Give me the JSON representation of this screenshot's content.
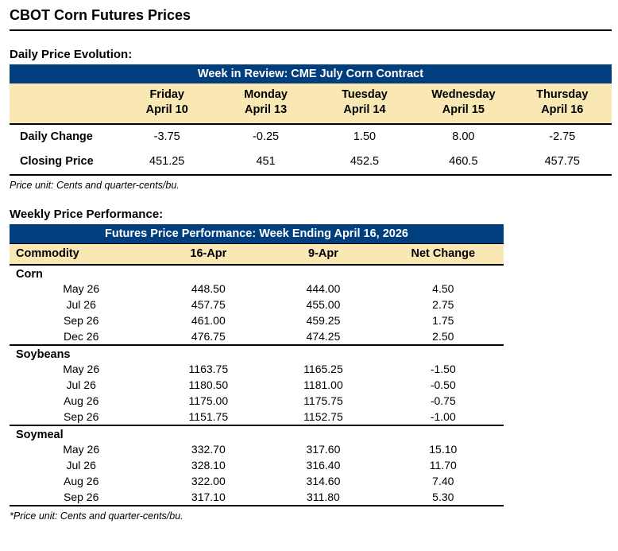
{
  "page": {
    "title": "CBOT Corn Futures Prices"
  },
  "colors": {
    "header_blue": "#003E7E",
    "header_cream": "#FAE8B4",
    "header_text": "#FFFFFF"
  },
  "daily_section": {
    "label": "Daily Price Evolution:",
    "table_title": "Week in Review: CME July Corn Contract",
    "columns": [
      {
        "day": "Friday",
        "date": "April 10"
      },
      {
        "day": "Monday",
        "date": "April 13"
      },
      {
        "day": "Tuesday",
        "date": "April 14"
      },
      {
        "day": "Wednesday",
        "date": "April 15"
      },
      {
        "day": "Thursday",
        "date": "April 16"
      }
    ],
    "rows": [
      {
        "label": "Daily Change",
        "values": [
          "-3.75",
          "-0.25",
          "1.50",
          "8.00",
          "-2.75"
        ]
      },
      {
        "label": "Closing Price",
        "values": [
          "451.25",
          "451",
          "452.5",
          "460.5",
          "457.75"
        ]
      }
    ],
    "footnote": "Price unit: Cents and quarter-cents/bu."
  },
  "weekly_section": {
    "label": "Weekly Price Performance:",
    "table_title": "Futures Price Performance: Week Ending April 16, 2026",
    "columns": [
      "Commodity",
      "16-Apr",
      "9-Apr",
      "Net Change"
    ],
    "groups": [
      {
        "name": "Corn",
        "rows": [
          {
            "contract": "May 26",
            "current": "448.50",
            "prior": "444.00",
            "change": "4.50"
          },
          {
            "contract": "Jul 26",
            "current": "457.75",
            "prior": "455.00",
            "change": "2.75"
          },
          {
            "contract": "Sep 26",
            "current": "461.00",
            "prior": "459.25",
            "change": "1.75"
          },
          {
            "contract": "Dec 26",
            "current": "476.75",
            "prior": "474.25",
            "change": "2.50"
          }
        ]
      },
      {
        "name": "Soybeans",
        "rows": [
          {
            "contract": "May 26",
            "current": "1163.75",
            "prior": "1165.25",
            "change": "-1.50"
          },
          {
            "contract": "Jul 26",
            "current": "1180.50",
            "prior": "1181.00",
            "change": "-0.50"
          },
          {
            "contract": "Aug 26",
            "current": "1175.00",
            "prior": "1175.75",
            "change": "-0.75"
          },
          {
            "contract": "Sep 26",
            "current": "1151.75",
            "prior": "1152.75",
            "change": "-1.00"
          }
        ]
      },
      {
        "name": "Soymeal",
        "rows": [
          {
            "contract": "May 26",
            "current": "332.70",
            "prior": "317.60",
            "change": "15.10"
          },
          {
            "contract": "Jul 26",
            "current": "328.10",
            "prior": "316.40",
            "change": "11.70"
          },
          {
            "contract": "Aug 26",
            "current": "322.00",
            "prior": "314.60",
            "change": "7.40"
          },
          {
            "contract": "Sep 26",
            "current": "317.10",
            "prior": "311.80",
            "change": "5.30"
          }
        ]
      }
    ],
    "footnote": "*Price unit: Cents and quarter-cents/bu."
  }
}
